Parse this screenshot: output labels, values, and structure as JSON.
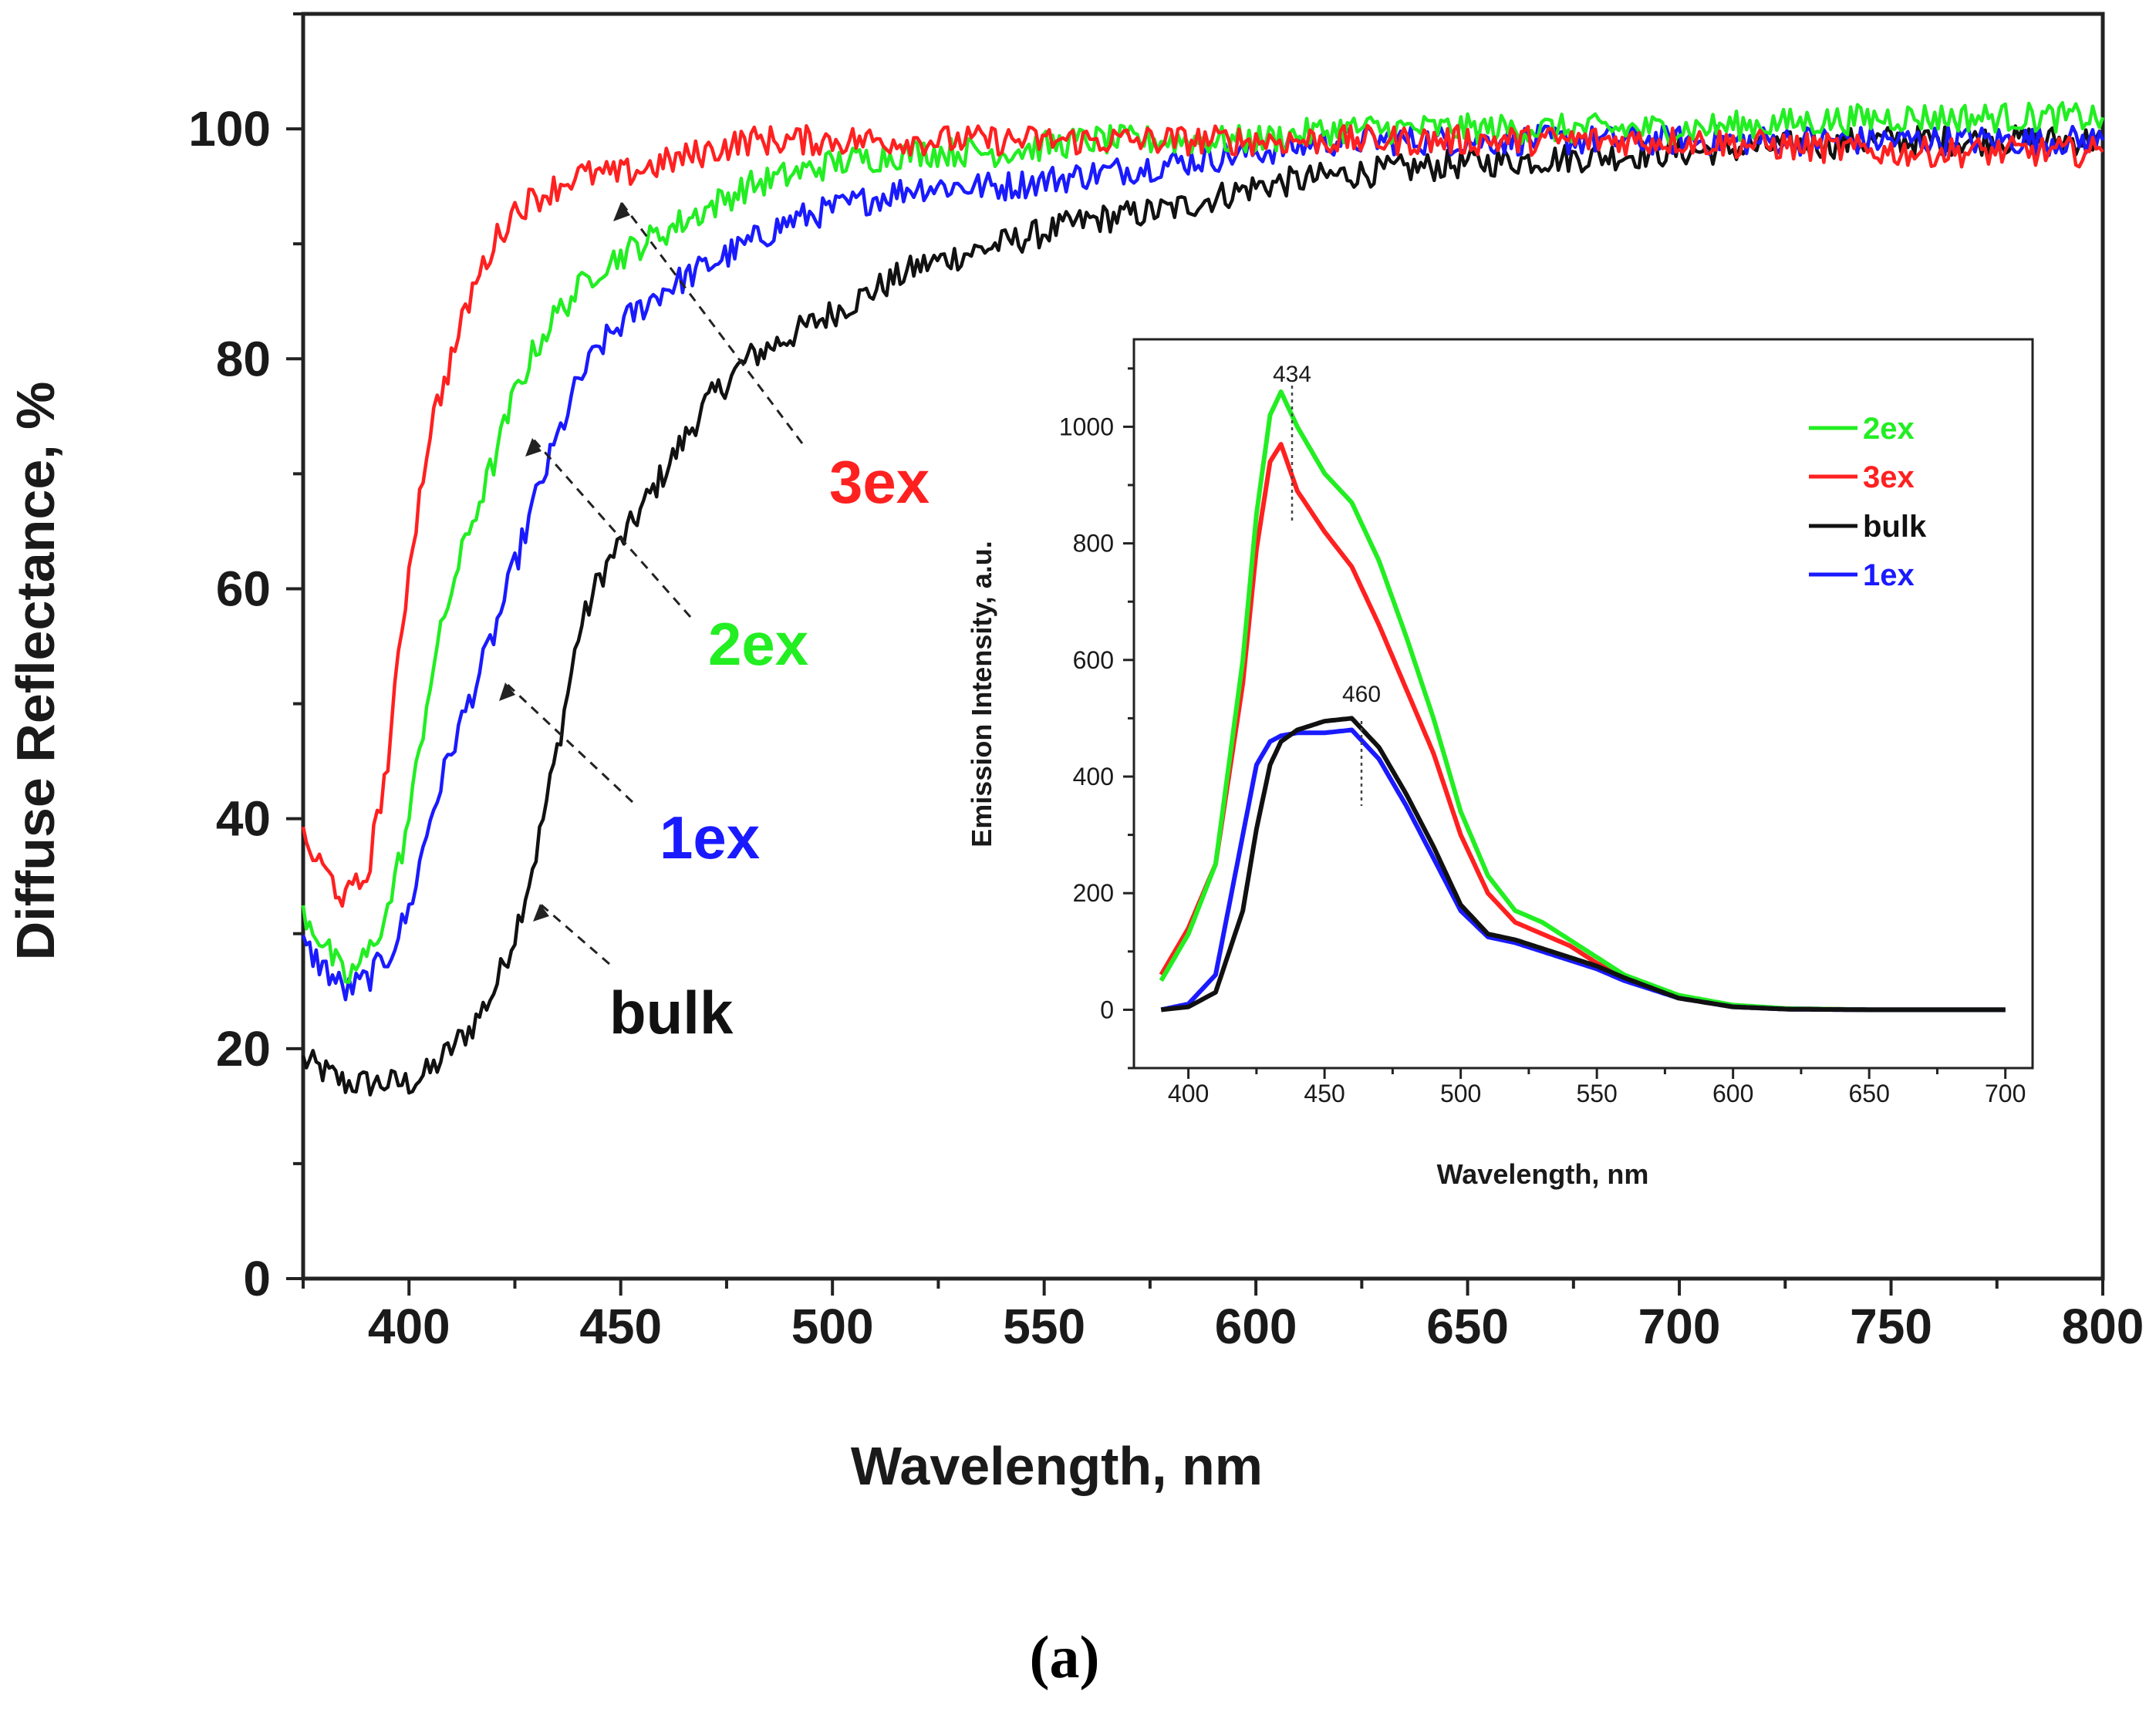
{
  "chart_data": [
    {
      "type": "line",
      "role": "main",
      "title": "",
      "xlabel": "Wavelength, nm",
      "ylabel": "Diffuse Reflectance, %",
      "xlim": [
        375,
        800
      ],
      "ylim": [
        0,
        110
      ],
      "xticks": [
        400,
        450,
        500,
        550,
        600,
        650,
        700,
        750,
        800
      ],
      "yticks": [
        0,
        20,
        40,
        60,
        80,
        100
      ],
      "grid": false,
      "x": [
        375,
        385,
        390,
        395,
        400,
        405,
        410,
        415,
        420,
        425,
        430,
        435,
        440,
        445,
        450,
        460,
        470,
        480,
        490,
        500,
        520,
        540,
        560,
        580,
        600,
        620,
        650,
        700,
        750,
        800
      ],
      "series": [
        {
          "name": "3ex",
          "color": "#ff2020",
          "values": [
            38,
            33,
            35,
            45,
            62,
            74,
            80,
            86,
            90,
            93,
            94,
            95,
            96,
            96,
            96,
            97,
            98,
            99,
            99,
            99,
            99,
            99,
            99,
            99,
            99,
            99,
            99,
            99,
            98,
            98
          ]
        },
        {
          "name": "2ex",
          "color": "#22ee22",
          "values": [
            32,
            26,
            28,
            32,
            40,
            52,
            60,
            66,
            71,
            77,
            81,
            84,
            86,
            88,
            89,
            91,
            93,
            95,
            96,
            97,
            98,
            98,
            99,
            99,
            99,
            100,
            100,
            100,
            101,
            101
          ]
        },
        {
          "name": "1ex",
          "color": "#1a1aff",
          "values": [
            29,
            25,
            26,
            28,
            32,
            40,
            46,
            51,
            56,
            62,
            68,
            73,
            78,
            81,
            83,
            86,
            88,
            90,
            92,
            93,
            95,
            95,
            96,
            97,
            98,
            99,
            99,
            99,
            99,
            99
          ]
        },
        {
          "name": "bulk",
          "color": "#111111",
          "values": [
            19,
            17,
            17,
            17,
            17,
            18,
            20,
            22,
            25,
            30,
            37,
            46,
            56,
            61,
            64,
            70,
            76,
            80,
            82,
            84,
            88,
            90,
            92,
            93,
            95,
            96,
            97,
            98,
            99,
            99
          ]
        }
      ],
      "labels": [
        {
          "text": "3ex",
          "color": "#ff2020"
        },
        {
          "text": "2ex",
          "color": "#22ee22"
        },
        {
          "text": "1ex",
          "color": "#1a1aff"
        },
        {
          "text": "bulk",
          "color": "#111111"
        }
      ]
    },
    {
      "type": "line",
      "role": "inset",
      "title": "",
      "xlabel": "Wavelength, nm",
      "ylabel": "Emission Intensity,  a.u.",
      "xlim": [
        380,
        710
      ],
      "ylim": [
        -100,
        1150
      ],
      "xticks": [
        400,
        450,
        500,
        550,
        600,
        650,
        700
      ],
      "yticks": [
        0,
        200,
        400,
        600,
        800,
        1000
      ],
      "grid": false,
      "legend_position": "top-right",
      "legend": [
        "2ex",
        "3ex",
        "bulk",
        "1ex"
      ],
      "annotations": [
        {
          "text": "434",
          "x": 434
        },
        {
          "text": "460",
          "x": 460
        }
      ],
      "x": [
        390,
        400,
        410,
        420,
        425,
        430,
        434,
        440,
        450,
        460,
        470,
        480,
        490,
        500,
        510,
        520,
        530,
        540,
        550,
        560,
        580,
        600,
        620,
        650,
        700
      ],
      "series": [
        {
          "name": "2ex",
          "color": "#22ee22",
          "values": [
            50,
            130,
            250,
            600,
            850,
            1020,
            1060,
            1000,
            920,
            870,
            770,
            640,
            500,
            340,
            230,
            170,
            150,
            120,
            90,
            60,
            25,
            8,
            2,
            0,
            0
          ]
        },
        {
          "name": "3ex",
          "color": "#ff2020",
          "values": [
            60,
            140,
            250,
            560,
            790,
            940,
            970,
            890,
            820,
            760,
            660,
            550,
            440,
            300,
            200,
            150,
            130,
            110,
            80,
            55,
            20,
            6,
            2,
            0,
            0
          ]
        },
        {
          "name": "bulk",
          "color": "#111111",
          "values": [
            0,
            5,
            30,
            170,
            310,
            420,
            460,
            480,
            495,
            500,
            450,
            370,
            280,
            180,
            130,
            120,
            105,
            90,
            75,
            55,
            20,
            5,
            1,
            0,
            0
          ]
        },
        {
          "name": "1ex",
          "color": "#1a1aff",
          "values": [
            0,
            10,
            60,
            300,
            420,
            460,
            470,
            475,
            475,
            480,
            430,
            350,
            260,
            170,
            125,
            115,
            100,
            85,
            70,
            50,
            20,
            5,
            1,
            0,
            0
          ]
        }
      ]
    }
  ],
  "panel_label": "(a)"
}
